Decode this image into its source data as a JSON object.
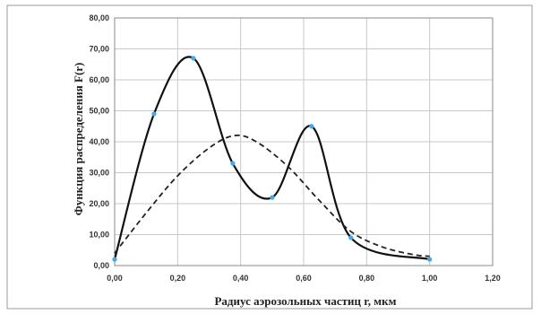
{
  "chart_data": {
    "type": "line",
    "xlabel": "Радиус аэрозольных частиц r, мкм",
    "ylabel": "Функция распределения F(r)",
    "xlim": [
      0,
      1.2
    ],
    "ylim": [
      0,
      80
    ],
    "x_ticks": [
      "0,00",
      "0,20",
      "0,40",
      "0,60",
      "0,80",
      "1,00",
      "1,20"
    ],
    "y_ticks": [
      "0,00",
      "10,00",
      "20,00",
      "30,00",
      "40,00",
      "50,00",
      "60,00",
      "70,00",
      "80,00"
    ],
    "grid": true,
    "legend": "none",
    "colors": {
      "solid": "#111111",
      "dashed": "#222222",
      "marker": "#3fa9f5",
      "grid": "#c8c8c8",
      "frame": "#888888"
    },
    "series": [
      {
        "style": "solid-with-markers",
        "x": [
          0.0,
          0.125,
          0.25,
          0.375,
          0.5,
          0.625,
          0.75,
          1.0
        ],
        "y": [
          2,
          49,
          67,
          33,
          22,
          45,
          9,
          2
        ]
      },
      {
        "style": "dashed",
        "x": [
          0.0,
          0.1,
          0.2,
          0.3,
          0.38,
          0.45,
          0.55,
          0.65,
          0.75,
          0.85,
          0.95,
          1.0
        ],
        "y": [
          4,
          17,
          29,
          38,
          42,
          40,
          32,
          21,
          11,
          6,
          3.5,
          3
        ]
      }
    ]
  }
}
